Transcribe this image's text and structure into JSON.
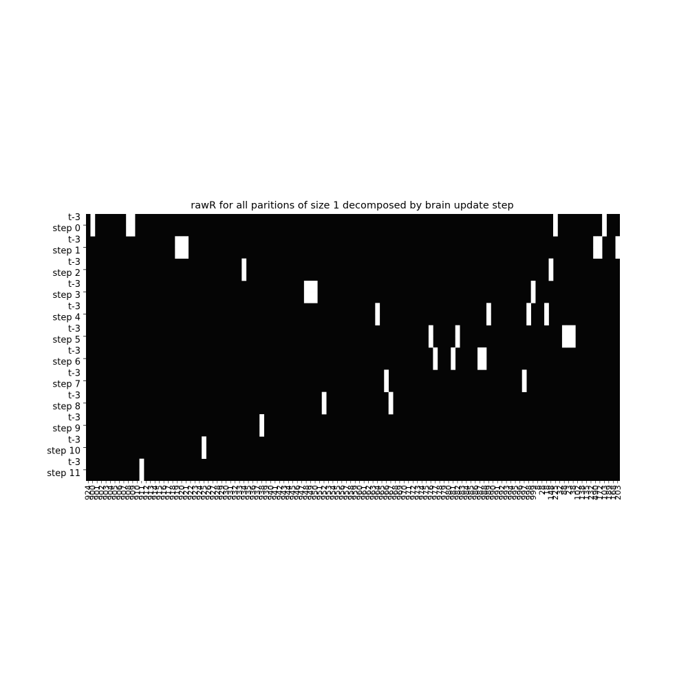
{
  "chart_data": {
    "type": "heatmap",
    "title": "rawR for all paritions of size 1 decomposed by brain update step",
    "xlabel": "",
    "ylabel": "",
    "rows": 24,
    "cols": 120,
    "row_labels": [
      "t-3\nstep 0",
      "t-3\nstep 1",
      "t-3\nstep 2",
      "t-3\nstep 3",
      "t-3\nstep 4",
      "t-3\nstep 5",
      "t-3\nstep 6",
      "t-3\nstep 7",
      "t-3\nstep 8",
      "t-3\nstep 9",
      "t-3\nstep 10",
      "t-3\nstep 11"
    ],
    "col_labels": [
      "924",
      "900",
      "901",
      "902",
      "903",
      "904",
      "905",
      "906",
      "907",
      "908",
      "909",
      "910",
      "911",
      "912",
      "913",
      "914",
      "915",
      "916",
      "917",
      "918",
      "919",
      "920",
      "921",
      "922",
      "923",
      "924",
      "925",
      "926",
      "927",
      "928",
      "929",
      "930",
      "931",
      "932",
      "933",
      "934",
      "935",
      "936",
      "937",
      "938",
      "939",
      "940",
      "941",
      "942",
      "943",
      "944",
      "945",
      "946",
      "947",
      "948",
      "949",
      "950",
      "951",
      "952",
      "953",
      "954",
      "955",
      "956",
      "957",
      "958",
      "959",
      "960",
      "961",
      "962",
      "963",
      "964",
      "965",
      "966",
      "967",
      "968",
      "969",
      "970",
      "971",
      "972",
      "973",
      "974",
      "975",
      "976",
      "977",
      "978",
      "979",
      "980",
      "981",
      "982",
      "983",
      "984",
      "985",
      "986",
      "987",
      "988",
      "989",
      "990",
      "991",
      "992",
      "993",
      "994",
      "995",
      "996",
      "997",
      "998",
      "999",
      "8",
      "28",
      "18",
      "148",
      "225",
      "32",
      "88",
      "23",
      "38",
      "102",
      "138",
      "135",
      "232",
      "490",
      "172",
      "103",
      "189",
      "168",
      "203"
    ],
    "colormap": "gray",
    "value_range": [
      0,
      1
    ],
    "background_value": 0.02,
    "bright_cells": [
      {
        "rows": [
          0,
          1
        ],
        "cols": [
          1
        ]
      },
      {
        "rows": [
          0,
          1
        ],
        "cols": [
          9,
          10
        ]
      },
      {
        "rows": [
          0,
          1
        ],
        "cols": [
          105
        ]
      },
      {
        "rows": [
          0,
          1
        ],
        "cols": [
          116
        ]
      },
      {
        "rows": [
          2,
          3
        ],
        "cols": [
          20,
          21,
          22
        ]
      },
      {
        "rows": [
          2,
          3
        ],
        "cols": [
          114,
          115
        ]
      },
      {
        "rows": [
          2,
          3
        ],
        "cols": [
          119
        ]
      },
      {
        "rows": [
          4,
          5
        ],
        "cols": [
          35
        ]
      },
      {
        "rows": [
          4,
          5
        ],
        "cols": [
          104
        ]
      },
      {
        "rows": [
          6,
          7
        ],
        "cols": [
          49,
          50,
          51
        ]
      },
      {
        "rows": [
          6,
          7
        ],
        "cols": [
          100
        ]
      },
      {
        "rows": [
          8,
          9
        ],
        "cols": [
          65
        ]
      },
      {
        "rows": [
          8,
          9
        ],
        "cols": [
          90
        ]
      },
      {
        "rows": [
          8,
          9
        ],
        "cols": [
          99
        ]
      },
      {
        "rows": [
          8,
          9
        ],
        "cols": [
          103
        ]
      },
      {
        "rows": [
          10,
          11
        ],
        "cols": [
          77
        ]
      },
      {
        "rows": [
          10,
          11
        ],
        "cols": [
          83
        ]
      },
      {
        "rows": [
          10,
          11
        ],
        "cols": [
          107,
          108,
          109
        ]
      },
      {
        "rows": [
          12,
          13
        ],
        "cols": [
          78
        ]
      },
      {
        "rows": [
          12,
          13
        ],
        "cols": [
          82
        ]
      },
      {
        "rows": [
          12,
          13
        ],
        "cols": [
          88,
          89
        ]
      },
      {
        "rows": [
          14,
          15
        ],
        "cols": [
          67
        ]
      },
      {
        "rows": [
          14,
          15
        ],
        "cols": [
          98
        ]
      },
      {
        "rows": [
          16,
          17
        ],
        "cols": [
          53
        ]
      },
      {
        "rows": [
          16,
          17
        ],
        "cols": [
          68
        ]
      },
      {
        "rows": [
          18,
          19
        ],
        "cols": [
          39
        ]
      },
      {
        "rows": [
          20,
          21
        ],
        "cols": [
          26
        ]
      },
      {
        "rows": [
          22,
          23
        ],
        "cols": [
          12
        ]
      }
    ],
    "grid": false,
    "colorbar": false
  }
}
